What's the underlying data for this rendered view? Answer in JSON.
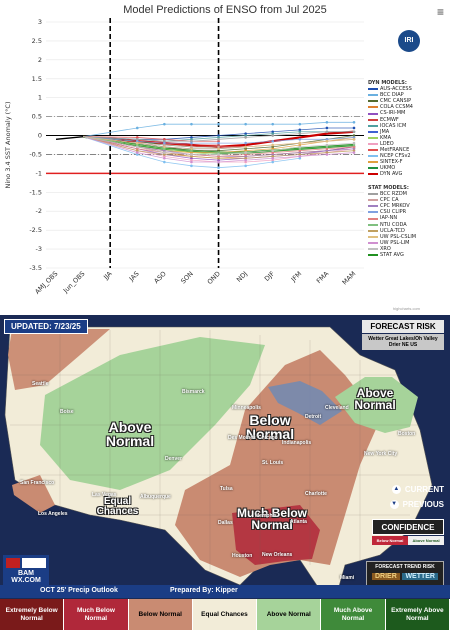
{
  "enso": {
    "title": "Model Predictions of ENSO from Jul 2025",
    "menu_icon": "hamburger-menu-icon",
    "logo_text": "IRI",
    "credit": "highcharts.com",
    "legend_dyn_header": "DYN MODELS:",
    "legend_dyn": [
      {
        "name": "AUS-ACCESS",
        "color": "#1f4fb0"
      },
      {
        "name": "BCC DIAP",
        "color": "#6ab0e0"
      },
      {
        "name": "CMC CANSIP",
        "color": "#556b2f"
      },
      {
        "name": "COLA CCSM4",
        "color": "#e08030"
      },
      {
        "name": "CS-IRI-MM",
        "color": "#9050c0"
      },
      {
        "name": "ECMWF",
        "color": "#d04040"
      },
      {
        "name": "IOCAS ICM",
        "color": "#50a0a0"
      },
      {
        "name": "JMA",
        "color": "#4060d0"
      },
      {
        "name": "KMA",
        "color": "#a0d060"
      },
      {
        "name": "LDEO",
        "color": "#f0a0c0"
      },
      {
        "name": "MetFRANCE",
        "color": "#e05050"
      },
      {
        "name": "NCEP CFSv2",
        "color": "#80c0f0"
      },
      {
        "name": "SINTEX-F",
        "color": "#e0a040"
      },
      {
        "name": "UKMO",
        "color": "#209040"
      },
      {
        "name": "DYN AVG",
        "color": "#cc0000"
      }
    ],
    "legend_stat_header": "STAT MODELS:",
    "legend_stat": [
      {
        "name": "BCC RZDM",
        "color": "#a0a0a0"
      },
      {
        "name": "CPC CA",
        "color": "#d0a0a0"
      },
      {
        "name": "CPC MRKOV",
        "color": "#a080c0"
      },
      {
        "name": "CSU CLIPR",
        "color": "#80a0e0"
      },
      {
        "name": "IAP-NN",
        "color": "#e08080"
      },
      {
        "name": "NTU CODA",
        "color": "#80c080"
      },
      {
        "name": "UCLA-TCD",
        "color": "#c0a060"
      },
      {
        "name": "UW PSL-CSLIM",
        "color": "#e0c080"
      },
      {
        "name": "UW PSL-LIM",
        "color": "#d090d0"
      },
      {
        "name": "XRO",
        "color": "#c0c0c0"
      },
      {
        "name": "STAT AVG",
        "color": "#209020"
      }
    ]
  },
  "chart_data": {
    "type": "line",
    "title": "Model Predictions of ENSO from Jul 2025",
    "ylabel": "Nino 3.4 SST Anomaly (°C)",
    "xlabel": "",
    "categories": [
      "AMJ_OBS",
      "Jun_OBS",
      "JJA",
      "JAS",
      "ASO",
      "SON",
      "OND",
      "NDJ",
      "DJF",
      "JFM",
      "FMA",
      "MAM"
    ],
    "yticks": [
      "3",
      "2.5",
      "2",
      "1.5",
      "1",
      "0.5",
      "0",
      "-0.5",
      "-1",
      "-1.5",
      "-2",
      "-2.5",
      "-3",
      "-3.5"
    ],
    "ylim": [
      -3.5,
      3
    ],
    "observed": [
      -0.1,
      -0.03
    ],
    "reference_lines": [
      0.5,
      -0.5,
      0,
      -1
    ],
    "series": [
      {
        "name": "DYN AVG",
        "values": [
          null,
          null,
          null,
          -0.15,
          -0.2,
          -0.25,
          -0.3,
          -0.25,
          -0.15,
          -0.05,
          0.05,
          0.1
        ]
      },
      {
        "name": "STAT AVG",
        "values": [
          null,
          null,
          null,
          -0.25,
          -0.35,
          -0.4,
          -0.45,
          -0.45,
          -0.4,
          -0.35,
          -0.3,
          -0.25
        ]
      },
      {
        "name": "AUS-ACCESS",
        "values": [
          null,
          null,
          null,
          -0.1,
          -0.1,
          -0.05,
          0.0,
          0.05,
          0.1,
          0.15,
          0.2,
          0.2
        ]
      },
      {
        "name": "BCC DIAP",
        "values": [
          null,
          null,
          null,
          0.2,
          0.3,
          0.3,
          0.3,
          0.3,
          0.3,
          0.3,
          0.35,
          0.35
        ]
      },
      {
        "name": "CMC CANSIP",
        "values": [
          null,
          null,
          null,
          -0.2,
          -0.3,
          -0.4,
          -0.4,
          -0.35,
          -0.3,
          -0.2,
          -0.1,
          0.0
        ]
      },
      {
        "name": "COLA CCSM4",
        "values": [
          null,
          null,
          null,
          -0.3,
          -0.45,
          -0.55,
          -0.6,
          -0.55,
          -0.5,
          -0.45,
          -0.4,
          -0.3
        ]
      },
      {
        "name": "CS-IRI-MM",
        "values": [
          null,
          null,
          null,
          -0.35,
          -0.5,
          -0.6,
          -0.65,
          -0.6,
          -0.55,
          -0.5,
          -0.4,
          -0.3
        ]
      },
      {
        "name": "ECMWF",
        "values": [
          null,
          null,
          null,
          -0.15,
          -0.2,
          -0.25,
          -0.25,
          null,
          null,
          null,
          null,
          null
        ]
      },
      {
        "name": "IOCAS ICM",
        "values": [
          null,
          null,
          null,
          -0.1,
          -0.15,
          -0.1,
          -0.05,
          0.0,
          0.05,
          0.1,
          0.1,
          0.1
        ]
      },
      {
        "name": "JMA",
        "values": [
          null,
          null,
          null,
          -0.2,
          -0.3,
          -0.35,
          -0.35,
          -0.3,
          null,
          null,
          null,
          null
        ]
      },
      {
        "name": "KMA",
        "values": [
          null,
          null,
          null,
          -0.25,
          -0.35,
          -0.45,
          -0.5,
          -0.45,
          -0.4,
          -0.3,
          null,
          null
        ]
      },
      {
        "name": "LDEO",
        "values": [
          null,
          null,
          null,
          -0.4,
          -0.55,
          -0.65,
          -0.7,
          -0.7,
          -0.65,
          -0.55,
          -0.45,
          -0.35
        ]
      },
      {
        "name": "MetFRANCE",
        "values": [
          null,
          null,
          null,
          -0.05,
          -0.1,
          -0.15,
          -0.15,
          null,
          null,
          null,
          null,
          null
        ]
      },
      {
        "name": "NCEP CFSv2",
        "values": [
          null,
          null,
          null,
          -0.5,
          -0.7,
          -0.8,
          -0.85,
          -0.8,
          -0.7,
          -0.6,
          null,
          null
        ]
      },
      {
        "name": "SINTEX-F",
        "values": [
          null,
          null,
          null,
          -0.3,
          -0.4,
          -0.45,
          -0.45,
          -0.4,
          -0.35,
          -0.25,
          -0.15,
          -0.05
        ]
      },
      {
        "name": "UKMO",
        "values": [
          null,
          null,
          null,
          -0.15,
          -0.25,
          -0.3,
          -0.3,
          null,
          null,
          null,
          null,
          null
        ]
      },
      {
        "name": "BCC RZDM",
        "values": [
          null,
          null,
          null,
          -0.1,
          -0.15,
          -0.15,
          -0.1,
          -0.05,
          0.0,
          0.05,
          0.1,
          0.1
        ]
      },
      {
        "name": "CPC CA",
        "values": [
          null,
          null,
          null,
          -0.2,
          -0.25,
          -0.3,
          -0.3,
          -0.3,
          -0.25,
          -0.2,
          -0.15,
          -0.1
        ]
      },
      {
        "name": "CPC MRKOV",
        "values": [
          null,
          null,
          null,
          -0.3,
          -0.4,
          -0.5,
          -0.55,
          -0.55,
          -0.5,
          -0.45,
          -0.4,
          -0.35
        ]
      },
      {
        "name": "CSU CLIPR",
        "values": [
          null,
          null,
          null,
          -0.15,
          -0.2,
          -0.2,
          -0.2,
          -0.2,
          -0.15,
          -0.1,
          -0.1,
          -0.05
        ]
      },
      {
        "name": "IAP-NN",
        "values": [
          null,
          null,
          null,
          -0.35,
          -0.45,
          -0.5,
          -0.55,
          -0.5,
          -0.45,
          -0.4,
          -0.35,
          -0.3
        ]
      },
      {
        "name": "NTU CODA",
        "values": [
          null,
          null,
          null,
          -0.25,
          -0.35,
          -0.4,
          -0.45,
          -0.45,
          -0.4,
          -0.35,
          -0.3,
          -0.25
        ]
      },
      {
        "name": "UCLA-TCD",
        "values": [
          null,
          null,
          null,
          -0.4,
          -0.5,
          -0.55,
          -0.6,
          -0.6,
          -0.55,
          -0.5,
          -0.45,
          -0.4
        ]
      },
      {
        "name": "UW PSL-CSLIM",
        "values": [
          null,
          null,
          null,
          -0.2,
          -0.3,
          -0.35,
          -0.35,
          -0.3,
          -0.25,
          -0.2,
          -0.15,
          -0.1
        ]
      },
      {
        "name": "UW PSL-LIM",
        "values": [
          null,
          null,
          null,
          -0.45,
          -0.6,
          -0.7,
          -0.7,
          -0.65,
          -0.6,
          -0.55,
          -0.5,
          -0.45
        ]
      },
      {
        "name": "XRO",
        "values": [
          null,
          null,
          null,
          -0.3,
          -0.45,
          -0.5,
          -0.5,
          -0.45,
          -0.4,
          -0.3,
          -0.25,
          -0.2
        ]
      }
    ]
  },
  "forecast": {
    "updated": "UPDATED: 7/23/25",
    "risk_title": "FORECAST RISK",
    "risk_sub": "Wetter Great Lakes/Oh Valley Drier NE US",
    "labels": {
      "above_west": "Above Normal",
      "above_ne": "Above Normal",
      "below_mw": "Below Normal",
      "much_below": "Much Below Normal",
      "equal": "Equal Chances"
    },
    "cities": [
      "Seattle",
      "Boise",
      "Bismarck",
      "Minneapolis",
      "Detroit",
      "Cleveland",
      "Boston",
      "Des Moines",
      "Chicago",
      "Indianapolis",
      "New York City",
      "Denver",
      "San Francisco",
      "Las Vegas",
      "Albuquerque",
      "St. Louis",
      "Los Angeles",
      "Tulsa",
      "Memphis",
      "Charlotte",
      "Atlanta",
      "Dallas",
      "Houston",
      "New Orleans",
      "Miami"
    ],
    "current": "CURRENT",
    "previous": "PREVIOUS",
    "confidence": "CONFIDENCE",
    "conf_low": "Below Normal",
    "conf_high": "Above Normal",
    "trend_title": "FORECAST TREND RISK",
    "drier": "DRIER",
    "wetter": "WETTER",
    "logo_text": "BAM WX.COM",
    "outlook_title": "OCT 25' Precip Outlook",
    "prepared": "Prepared By: Kipper",
    "categories": [
      {
        "label": "Extremely Below Normal",
        "bg": "#7a1a1a",
        "fg": "#ffffff"
      },
      {
        "label": "Much Below Normal",
        "bg": "#b0283a",
        "fg": "#ffffff"
      },
      {
        "label": "Below Normal",
        "bg": "#c98b72",
        "fg": "#000000"
      },
      {
        "label": "Equal Chances",
        "bg": "#f2ecd8",
        "fg": "#000000"
      },
      {
        "label": "Above Normal",
        "bg": "#a6d39a",
        "fg": "#000000"
      },
      {
        "label": "Much Above Normal",
        "bg": "#3f8a3a",
        "fg": "#ffffff"
      },
      {
        "label": "Extremely Above Normal",
        "bg": "#1d5a1d",
        "fg": "#ffffff"
      }
    ]
  }
}
